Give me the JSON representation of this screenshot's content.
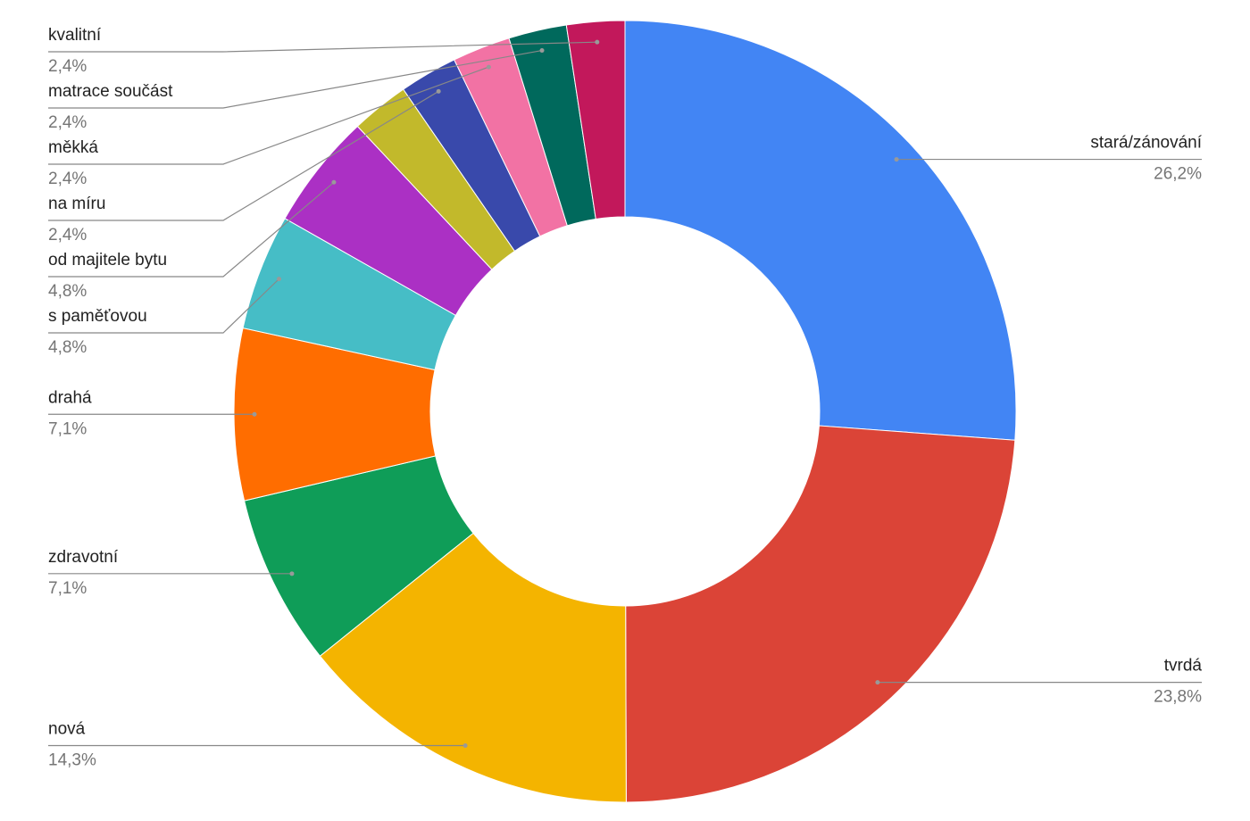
{
  "chart_data": {
    "type": "donut",
    "categories": [
      "stará/zánování",
      "tvrdá",
      "nová",
      "zdravotní",
      "drahá",
      "s paměťovou",
      "od majitele bytu",
      null,
      "na míru",
      "měkká",
      "matrace součást",
      "kvalitní"
    ],
    "values": [
      26.2,
      23.8,
      14.3,
      7.1,
      7.1,
      4.8,
      4.8,
      2.4,
      2.4,
      2.4,
      2.4,
      2.4
    ],
    "value_labels": [
      "26,2%",
      "23,8%",
      "14,3%",
      "7,1%",
      "7,1%",
      "4,8%",
      "4,8%",
      null,
      "2,4%",
      "2,4%",
      "2,4%",
      "2,4%"
    ],
    "colors": [
      "#4285f4",
      "#db4437",
      "#f4b400",
      "#0f9d58",
      "#ff6d00",
      "#46bdc6",
      "#ab30c4",
      "#c2b92b",
      "#3949ab",
      "#f272a4",
      "#00695c",
      "#c2185b"
    ]
  }
}
